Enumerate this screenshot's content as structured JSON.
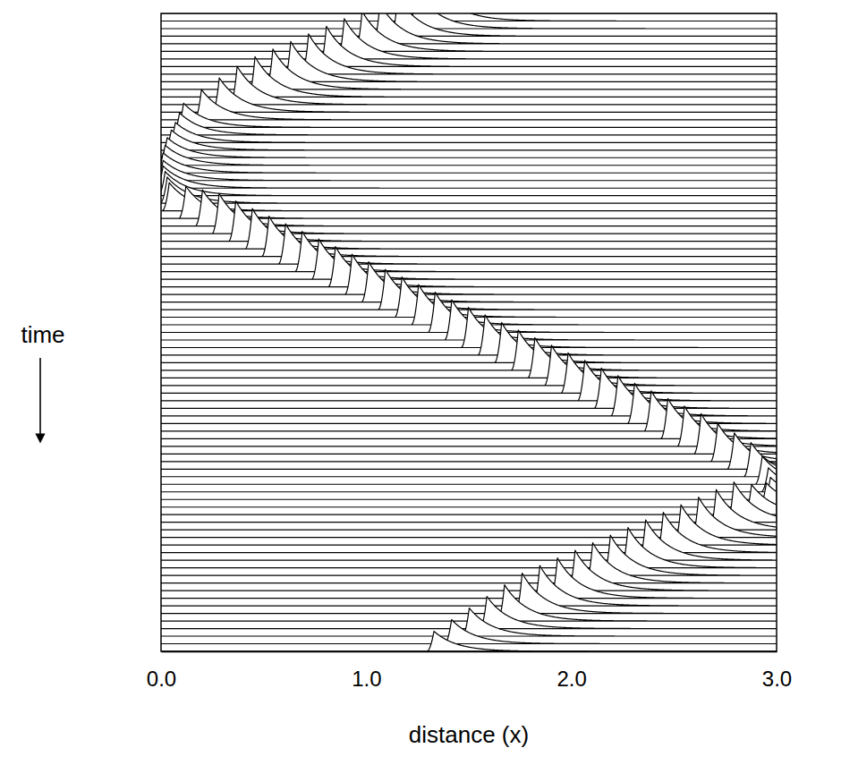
{
  "chart_data": {
    "type": "waterfall",
    "x_label": "distance (x)",
    "y_label": "time",
    "xlim": [
      0,
      3
    ],
    "xticks": [
      {
        "value": 0,
        "label": "0.0"
      },
      {
        "value": 1,
        "label": "1.0"
      },
      {
        "value": 2,
        "label": "2.0"
      },
      {
        "value": 3,
        "label": "3.0"
      }
    ],
    "x": [
      1.415,
      1.328,
      1.241,
      1.154,
      1.067,
      0.98,
      0.893,
      0.806,
      0.719,
      0.632,
      0.545,
      0.458,
      0.371,
      0.284,
      0.197,
      0.11,
      0.09,
      0.07,
      0.05,
      0.03,
      0.02,
      0.01,
      0.01,
      0.01,
      0.02,
      0.03,
      0.04,
      0.121,
      0.202,
      0.283,
      0.364,
      0.445,
      0.526,
      0.607,
      0.688,
      0.769,
      0.85,
      0.931,
      1.012,
      1.093,
      1.174,
      1.255,
      1.336,
      1.417,
      1.498,
      1.579,
      1.66,
      1.741,
      1.822,
      1.903,
      1.984,
      2.065,
      2.146,
      2.227,
      2.308,
      2.389,
      2.47,
      2.551,
      2.632,
      2.713,
      2.794,
      2.875,
      2.93,
      2.96,
      2.97,
      2.95,
      2.878,
      2.792,
      2.706,
      2.62,
      2.534,
      2.448,
      2.362,
      2.276,
      2.19,
      2.104,
      2.018,
      1.932,
      1.846,
      1.76,
      1.674,
      1.588,
      1.502,
      1.416,
      1.33
    ],
    "values": [
      1.0,
      1.0,
      1.0,
      1.0,
      1.0,
      1.0,
      1.0,
      1.0,
      1.0,
      1.0,
      1.0,
      1.0,
      0.95,
      0.85,
      0.75,
      0.6,
      0.55,
      0.5,
      0.5,
      0.5,
      0.5,
      0.5,
      0.5,
      0.55,
      0.6,
      0.65,
      0.7,
      0.8,
      0.9,
      1.0,
      1.0,
      1.0,
      1.0,
      1.0,
      1.0,
      1.0,
      1.0,
      1.0,
      1.0,
      1.0,
      1.0,
      1.0,
      1.0,
      1.0,
      1.0,
      1.0,
      1.0,
      1.0,
      1.0,
      1.0,
      1.0,
      1.0,
      1.0,
      1.0,
      1.0,
      1.0,
      1.0,
      1.0,
      1.0,
      0.95,
      0.9,
      0.85,
      0.7,
      0.6,
      0.55,
      0.6,
      0.75,
      1.0,
      1.0,
      1.0,
      1.0,
      1.0,
      1.0,
      1.0,
      1.0,
      1.0,
      1.0,
      1.0,
      1.0,
      1.0,
      0.9,
      0.8,
      0.7,
      0.6,
      0.5
    ]
  }
}
